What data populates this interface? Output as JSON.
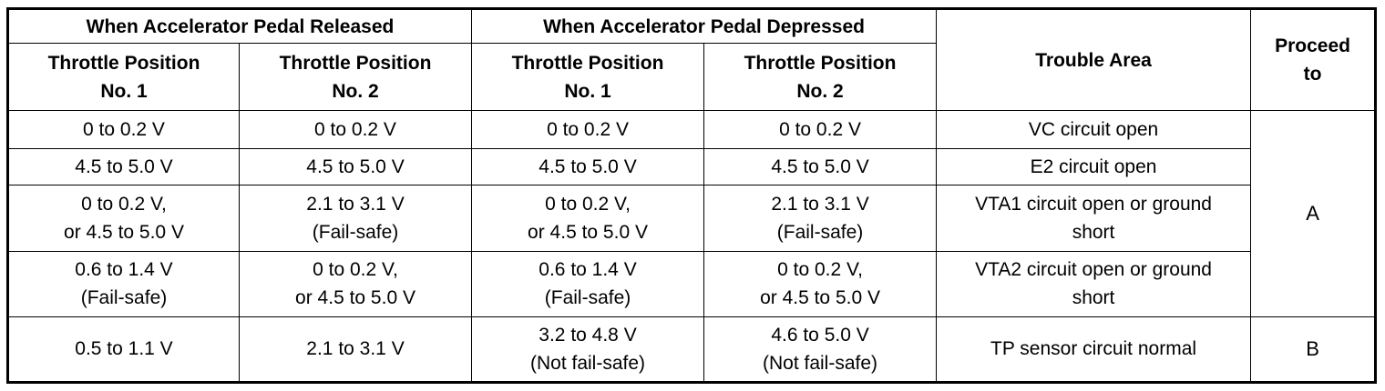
{
  "headers": {
    "released": "When Accelerator Pedal Released",
    "depressed": "When Accelerator Pedal Depressed",
    "trouble_area": "Trouble Area",
    "proceed_to": "Proceed\nto",
    "tp1": "Throttle Position\nNo. 1",
    "tp2": "Throttle Position\nNo. 2"
  },
  "rows": [
    {
      "rel_tp1": "0 to 0.2 V",
      "rel_tp2": "0 to 0.2 V",
      "dep_tp1": "0 to 0.2 V",
      "dep_tp2": "0 to 0.2 V",
      "area": "VC circuit open"
    },
    {
      "rel_tp1": "4.5 to 5.0 V",
      "rel_tp2": "4.5 to 5.0 V",
      "dep_tp1": "4.5 to 5.0 V",
      "dep_tp2": "4.5 to 5.0 V",
      "area": "E2 circuit open"
    },
    {
      "rel_tp1": "0 to 0.2 V,\nor 4.5 to 5.0 V",
      "rel_tp2": "2.1 to 3.1 V\n(Fail-safe)",
      "dep_tp1": "0 to 0.2 V,\nor 4.5 to 5.0 V",
      "dep_tp2": "2.1 to 3.1 V\n(Fail-safe)",
      "area": "VTA1 circuit open or ground\nshort"
    },
    {
      "rel_tp1": "0.6 to 1.4 V\n(Fail-safe)",
      "rel_tp2": "0 to 0.2 V,\nor 4.5 to 5.0 V",
      "dep_tp1": "0.6 to 1.4 V\n(Fail-safe)",
      "dep_tp2": "0 to 0.2 V,\nor 4.5 to 5.0 V",
      "area": "VTA2 circuit open or ground\nshort"
    },
    {
      "rel_tp1": "0.5 to 1.1 V",
      "rel_tp2": "2.1 to 3.1 V",
      "dep_tp1": "3.2 to 4.8 V\n(Not fail-safe)",
      "dep_tp2": "4.6 to 5.0 V\n(Not fail-safe)",
      "area": "TP sensor circuit normal"
    }
  ],
  "proceed": {
    "group_a": "A",
    "group_b": "B"
  }
}
